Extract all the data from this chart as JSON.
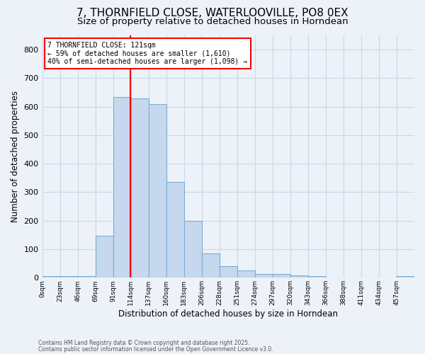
{
  "title1": "7, THORNFIELD CLOSE, WATERLOOVILLE, PO8 0EX",
  "title2": "Size of property relative to detached houses in Horndean",
  "xlabel": "Distribution of detached houses by size in Horndean",
  "ylabel": "Number of detached properties",
  "annotation_line1": "7 THORNFIELD CLOSE: 121sqm",
  "annotation_line2": "← 59% of detached houses are smaller (1,610)",
  "annotation_line3": "40% of semi-detached houses are larger (1,098) →",
  "bar_color": "#c5d8ee",
  "bar_edge_color": "#7aadd4",
  "red_line_x": 114,
  "bin_width": 23,
  "categories": [
    "0sqm",
    "23sqm",
    "46sqm",
    "69sqm",
    "91sqm",
    "114sqm",
    "137sqm",
    "160sqm",
    "183sqm",
    "206sqm",
    "228sqm",
    "251sqm",
    "274sqm",
    "297sqm",
    "320sqm",
    "343sqm",
    "366sqm",
    "388sqm",
    "411sqm",
    "434sqm",
    "457sqm"
  ],
  "values": [
    5,
    5,
    5,
    148,
    635,
    630,
    610,
    335,
    200,
    85,
    40,
    25,
    12,
    12,
    7,
    5,
    0,
    0,
    0,
    0,
    5
  ],
  "ylim": [
    0,
    850
  ],
  "yticks": [
    0,
    100,
    200,
    300,
    400,
    500,
    600,
    700,
    800
  ],
  "grid_color": "#c8d8ec",
  "footnote1": "Contains HM Land Registry data © Crown copyright and database right 2025.",
  "footnote2": "Contains public sector information licensed under the Open Government Licence v3.0.",
  "bg_color": "#edf2f9",
  "title_fontsize": 11,
  "subtitle_fontsize": 9.5
}
